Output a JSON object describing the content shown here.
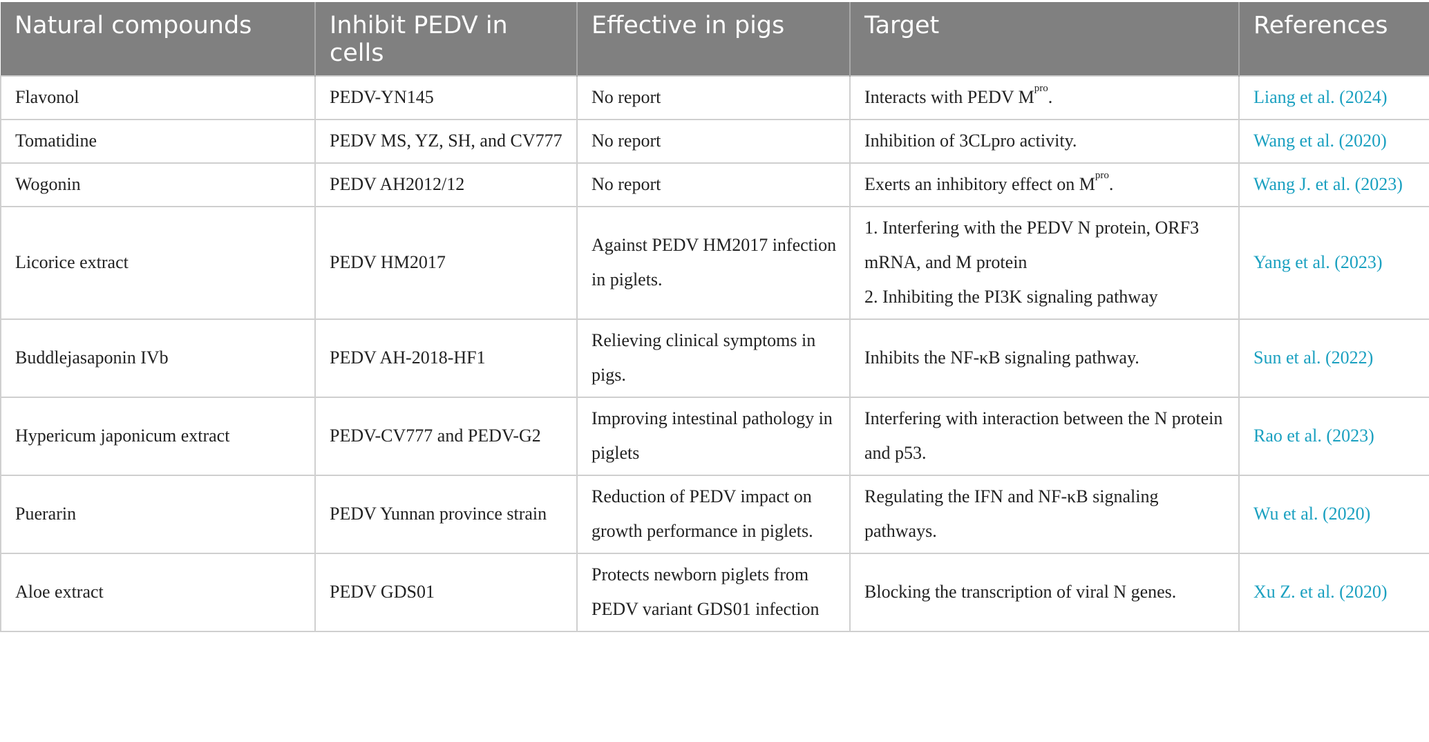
{
  "table": {
    "header": [
      "Natural compounds",
      "Inhibit PEDV in cells",
      "Effective in pigs",
      "Target",
      "References"
    ],
    "rows": [
      [
        "Flavonol",
        "PEDV-YN145",
        "No report",
        {
          "main": "Interacts with PEDV M",
          "sup": "pro",
          "tail": "."
        },
        "Liang et al. (2024)"
      ],
      [
        "Tomatidine",
        "PEDV MS, YZ, SH, and CV777",
        "No report",
        "Inhibition of 3CLpro activity.",
        "Wang et al. (2020)"
      ],
      [
        "Wogonin",
        "PEDV AH2012/12",
        "No report",
        {
          "main": "Exerts an inhibitory effect on M",
          "sup": "pro",
          "tail": "."
        },
        "Wang J. et al. (2023)"
      ],
      [
        "Licorice extract",
        "PEDV HM2017",
        "Against PEDV HM2017 infection in piglets.",
        [
          "1. Interfering with the PEDV N protein, ORF3 mRNA, and M protein",
          "2. Inhibiting the PI3K signaling pathway"
        ],
        "Yang et al. (2023)"
      ],
      [
        "Buddlejasaponin IVb",
        "PEDV AH-2018-HF1",
        "Relieving clinical symptoms in pigs.",
        "Inhibits the NF-κB signaling pathway.",
        "Sun et al. (2022)"
      ],
      [
        "Hypericum japonicum extract",
        "PEDV-CV777 and PEDV-G2",
        "Improving intestinal pathology in piglets",
        "Interfering with interaction between the N protein and p53.",
        "Rao et al. (2023)"
      ],
      [
        "Puerarin",
        "PEDV Yunnan province strain",
        "Reduction of PEDV impact on growth performance in piglets.",
        "Regulating the IFN and NF-κB signaling pathways.",
        "Wu et al. (2020)"
      ],
      [
        "Aloe extract",
        "PEDV GDS01",
        "Protects newborn piglets from PEDV variant GDS01 infection",
        "Blocking the transcription of viral N genes.",
        "Xu Z. et al. (2020)"
      ]
    ]
  }
}
